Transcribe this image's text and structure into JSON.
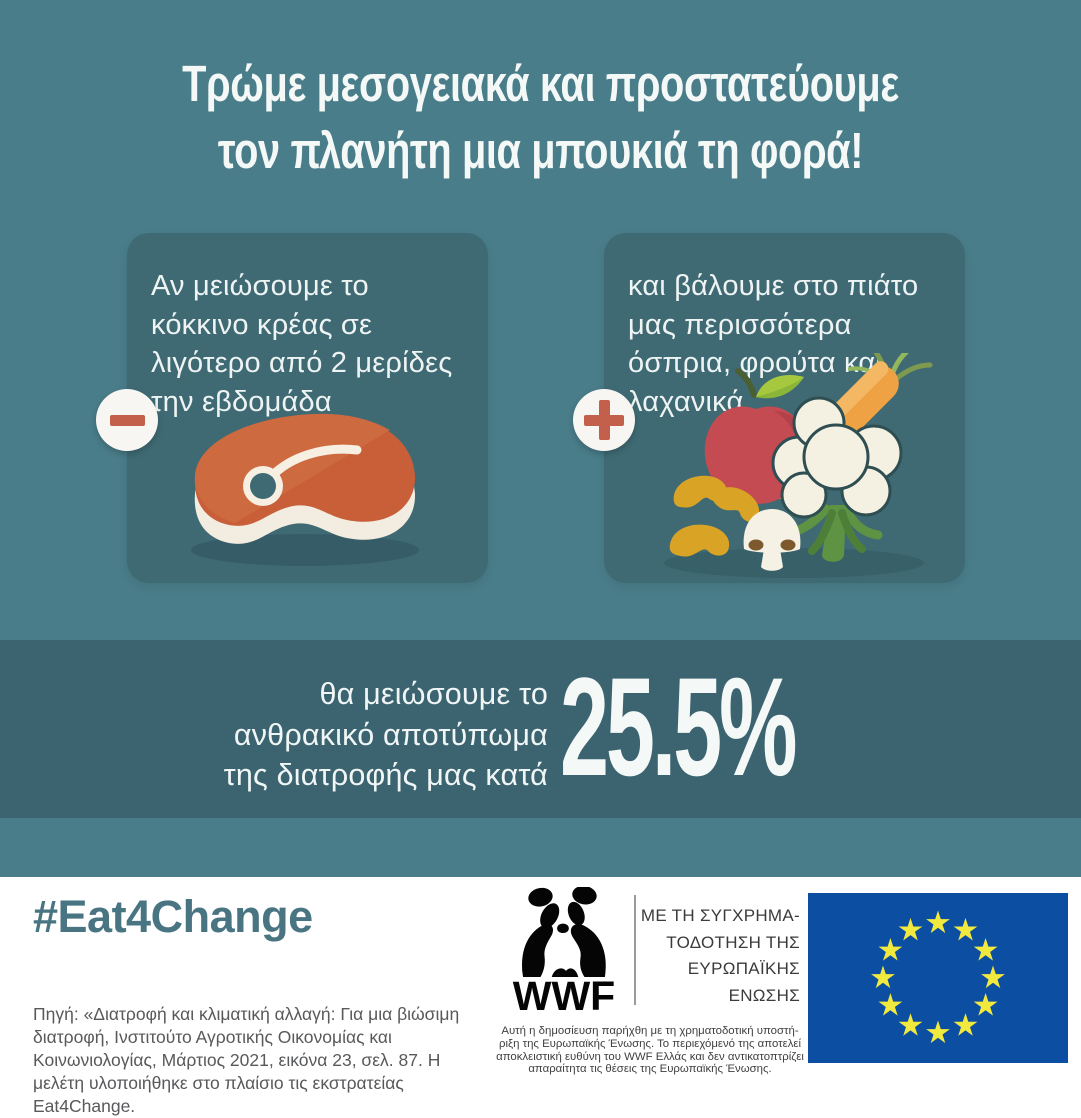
{
  "title": {
    "lines": [
      "Τρώμε μεσογειακά και προστατεύουμε",
      "τον πλανήτη μια μπουκιά τη φορά!"
    ]
  },
  "cards": {
    "left": {
      "icon": "minus-icon",
      "illustration": "steak-illustration",
      "text": "Αν μειώσουμε το κόκκινο κρέας σε λιγότερο από 2 μερίδες την εβδομάδα"
    },
    "right": {
      "icon": "plus-icon",
      "illustration": "vegetables-illustration",
      "text": "και βάλουμε στο πιάτο μας περισσότερα όσπρια, φρούτα και λαχανικά"
    }
  },
  "result_band": {
    "lines": [
      "θα μειώσουμε το",
      "ανθρακικό αποτύπωμα",
      "της διατροφής μας κατά"
    ],
    "value": "25.5%"
  },
  "footer": {
    "hashtag": "#Eat4Change",
    "source": "Πηγή: «Διατροφή και κλιματική αλλαγή: Για μια βιώσιμη διατροφή, Ινστιτούτο Αγροτικής Οικονομίας και Κοινωνιολογίας, Μάρτιος 2021, εικόνα 23, σελ. 87. Η μελέτη υλοποιήθηκε στο πλαίσιο τις εκστρατείας Eat4Change.",
    "wwf": {
      "label": "WWF",
      "registered": "®",
      "icon": "panda-icon"
    },
    "eu_cofunding": {
      "lines": [
        "ΜΕ ΤΗ ΣΥΓΧΡΗΜΑ-",
        "ΤΟΔΟΤΗΣΗ ΤΗΣ",
        "ΕΥΡΩΠΑΪΚΗΣ",
        "ΕΝΩΣΗΣ"
      ]
    },
    "disclaimer": "Αυτή η δημοσίευση παρήχθη με τη χρηματοδοτική υποστή-ριξη της Ευρωπαϊκής Ένωσης. Το περιεχόμενό της αποτελεί αποκλειστική ευθύνη του WWF Ελλάς και δεν αντικατοπτρίζει απαραίτητα τις θέσεις της Ευρωπαϊκής Ένωσης.",
    "eu_flag": {
      "star_count": 12
    }
  },
  "colors": {
    "background_teal": "#497d89",
    "card_teal": "#3f6a74",
    "band_teal": "#3c6470",
    "accent_terracotta": "#c2604b",
    "headline_white": "#f4f8f7",
    "hashtag_teal": "#497583",
    "source_gray": "#58595b",
    "eu_flag_blue": "#0b4ea2",
    "eu_star_yellow": "#f2e93e"
  }
}
